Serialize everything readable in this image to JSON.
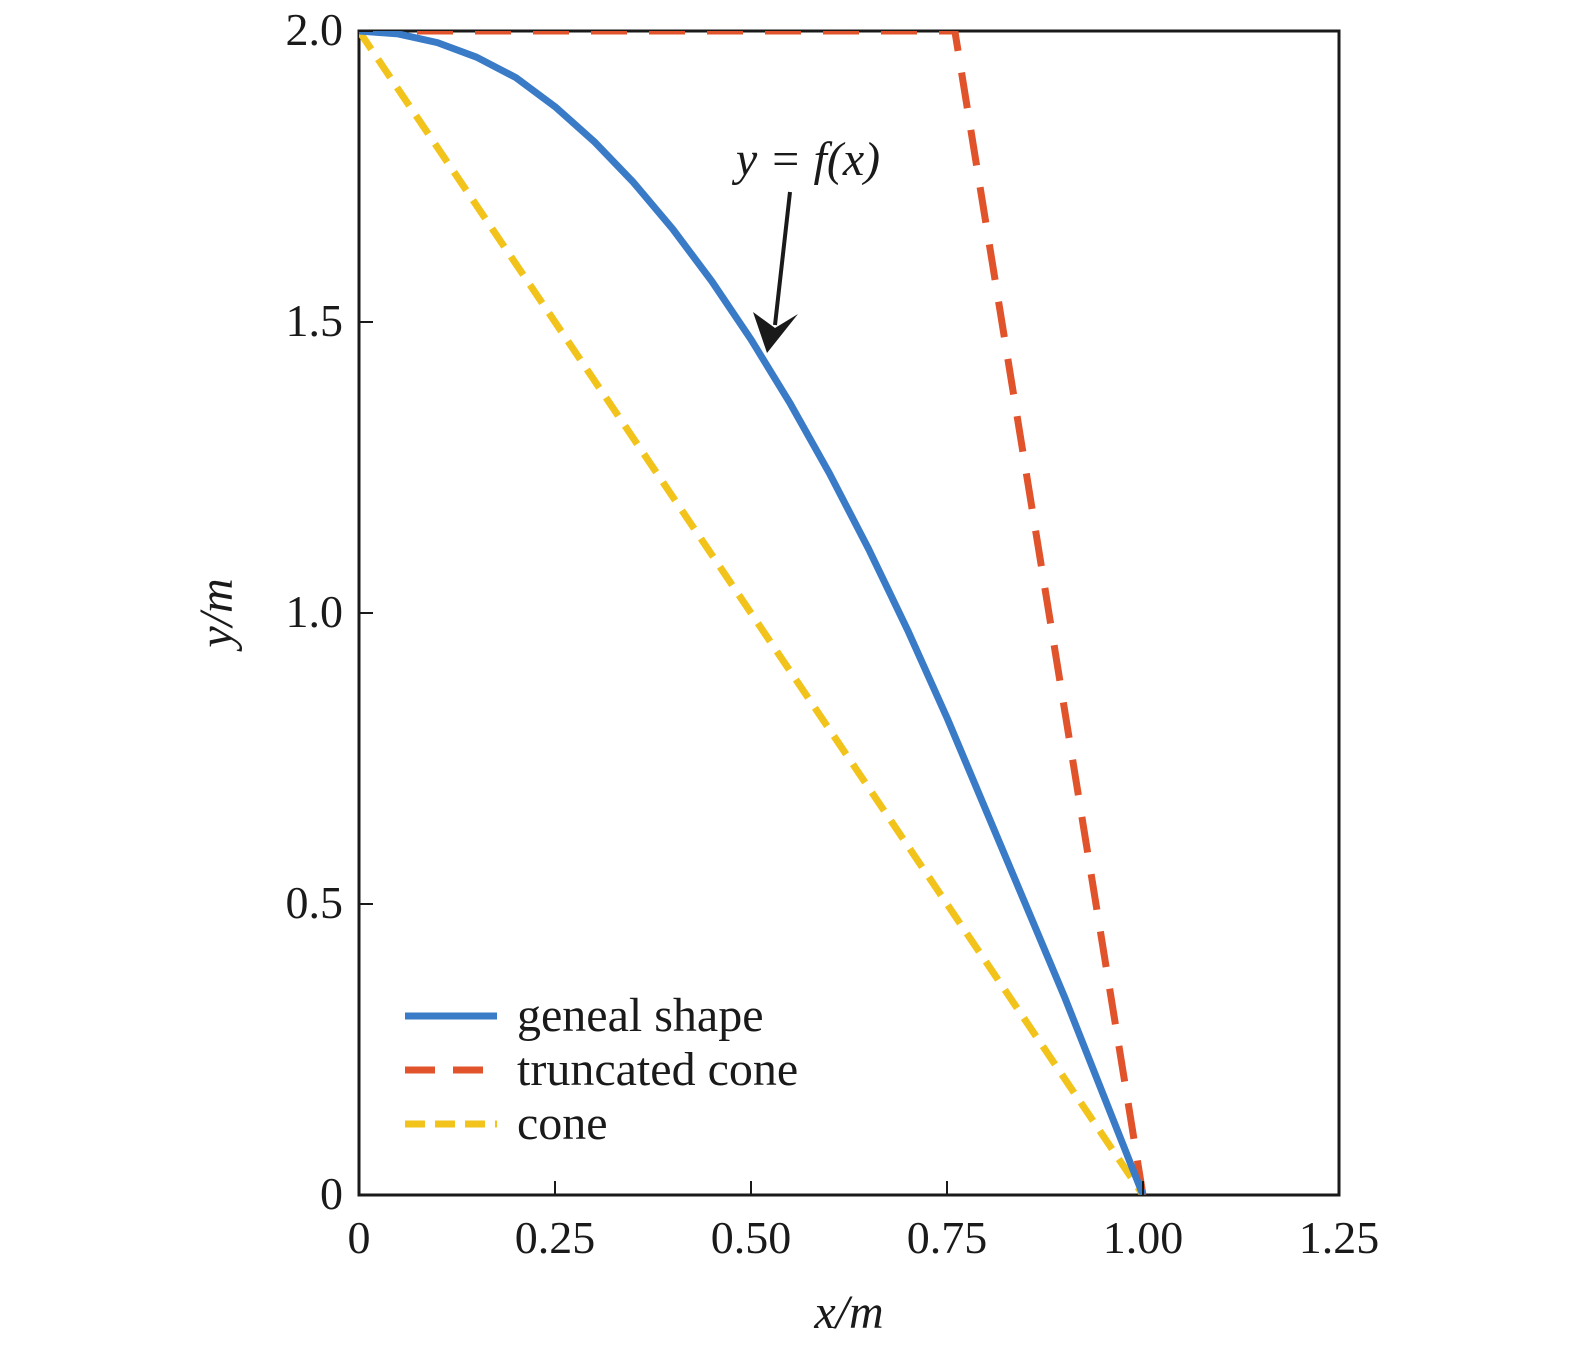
{
  "chart_data": {
    "type": "line",
    "title": "",
    "xlabel": "x/m",
    "ylabel": "y/m",
    "xlim": [
      0,
      1.25
    ],
    "ylim": [
      0,
      2.0
    ],
    "x_ticks": [
      0,
      0.25,
      0.5,
      0.75,
      1.0,
      1.25
    ],
    "x_tick_labels": [
      "0",
      "0.25",
      "0.50",
      "0.75",
      "1.00",
      "1.25"
    ],
    "y_ticks": [
      0,
      0.5,
      1.0,
      1.5,
      2.0
    ],
    "y_tick_labels": [
      "0",
      "0.5",
      "1.0",
      "1.5",
      "2.0"
    ],
    "grid": false,
    "legend_position": "bottom-left",
    "series": [
      {
        "name": "geneal shape",
        "color": "#3a7bc8",
        "style": "solid",
        "points": [
          [
            0,
            2.0
          ],
          [
            0.05,
            1.995
          ],
          [
            0.1,
            1.98
          ],
          [
            0.15,
            1.955
          ],
          [
            0.2,
            1.92
          ],
          [
            0.25,
            1.87
          ],
          [
            0.3,
            1.81
          ],
          [
            0.35,
            1.74
          ],
          [
            0.4,
            1.66
          ],
          [
            0.45,
            1.57
          ],
          [
            0.5,
            1.47
          ],
          [
            0.55,
            1.36
          ],
          [
            0.6,
            1.24
          ],
          [
            0.65,
            1.11
          ],
          [
            0.7,
            0.97
          ],
          [
            0.75,
            0.82
          ],
          [
            0.8,
            0.66
          ],
          [
            0.85,
            0.5
          ],
          [
            0.9,
            0.34
          ],
          [
            0.95,
            0.17
          ],
          [
            1.0,
            0.0
          ]
        ]
      },
      {
        "name": "truncated cone",
        "color": "#e0532b",
        "style": "dashed",
        "points": [
          [
            0,
            2.0
          ],
          [
            0.76,
            2.0
          ],
          [
            1.0,
            0.0
          ]
        ]
      },
      {
        "name": "cone",
        "color": "#f2c31b",
        "style": "dashed",
        "points": [
          [
            0,
            2.0
          ],
          [
            1.0,
            0.0
          ]
        ]
      }
    ],
    "annotations": [
      {
        "text": "y = f(x)",
        "arrow_to": [
          0.52,
          1.44
        ]
      }
    ]
  }
}
